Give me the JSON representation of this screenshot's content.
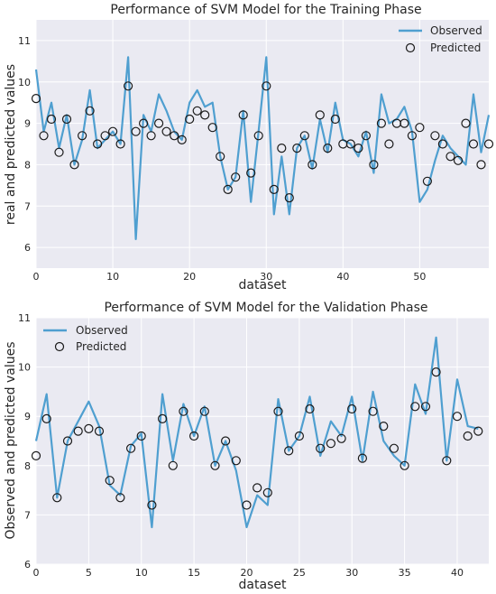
{
  "colors": {
    "background": "#ffffff",
    "plot_bg": "#eaeaf2",
    "grid": "#ffffff",
    "observed_line": "#4f9fd0",
    "predicted_marker_edge": "#1a1a1a",
    "text": "#262626"
  },
  "chart_data": [
    {
      "type": "line",
      "title": "Performance of SVM Model for the Training Phase",
      "xlabel": "dataset",
      "ylabel": "real and predicted values",
      "xlim": [
        0,
        59
      ],
      "ylim": [
        5.5,
        11.5
      ],
      "xticks": [
        0,
        10,
        20,
        30,
        40,
        50
      ],
      "yticks": [
        6,
        7,
        8,
        9,
        10,
        11
      ],
      "grid": true,
      "legend_position": "top-right",
      "series": [
        {
          "name": "Observed",
          "style": "line",
          "x": [
            0,
            1,
            2,
            3,
            4,
            5,
            6,
            7,
            8,
            9,
            10,
            11,
            12,
            13,
            14,
            15,
            16,
            17,
            18,
            19,
            20,
            21,
            22,
            23,
            24,
            25,
            26,
            27,
            28,
            29,
            30,
            31,
            32,
            33,
            34,
            35,
            36,
            37,
            38,
            39,
            40,
            41,
            42,
            43,
            44,
            45,
            46,
            47,
            48,
            49,
            50,
            51,
            52,
            53,
            54,
            55,
            56,
            57,
            58,
            59
          ],
          "values": [
            10.3,
            8.8,
            9.5,
            8.4,
            9.2,
            8.0,
            8.6,
            9.8,
            8.4,
            8.6,
            8.8,
            8.5,
            10.6,
            6.2,
            9.2,
            8.8,
            9.7,
            9.3,
            8.8,
            8.6,
            9.5,
            9.8,
            9.4,
            9.5,
            8.2,
            7.4,
            7.7,
            9.3,
            7.1,
            8.8,
            10.6,
            6.8,
            8.2,
            6.8,
            8.4,
            8.7,
            7.9,
            9.1,
            8.3,
            9.5,
            8.6,
            8.5,
            8.2,
            8.8,
            7.8,
            9.7,
            9.0,
            9.1,
            9.4,
            8.8,
            7.1,
            7.4,
            8.1,
            8.7,
            8.4,
            8.2,
            8.0,
            9.7,
            8.3,
            9.2
          ]
        },
        {
          "name": "Predicted",
          "style": "marker",
          "x": [
            0,
            1,
            2,
            3,
            4,
            5,
            6,
            7,
            8,
            9,
            10,
            11,
            12,
            13,
            14,
            15,
            16,
            17,
            18,
            19,
            20,
            21,
            22,
            23,
            24,
            25,
            26,
            27,
            28,
            29,
            30,
            31,
            32,
            33,
            34,
            35,
            36,
            37,
            38,
            39,
            40,
            41,
            42,
            43,
            44,
            45,
            46,
            47,
            48,
            49,
            50,
            51,
            52,
            53,
            54,
            55,
            56,
            57,
            58,
            59
          ],
          "values": [
            9.6,
            8.7,
            9.1,
            8.3,
            9.1,
            8.0,
            8.7,
            9.3,
            8.5,
            8.7,
            8.8,
            8.5,
            9.9,
            8.8,
            9.0,
            8.7,
            9.0,
            8.8,
            8.7,
            8.6,
            9.1,
            9.3,
            9.2,
            8.9,
            8.2,
            7.4,
            7.7,
            9.2,
            7.8,
            8.7,
            9.9,
            7.4,
            8.4,
            7.2,
            8.4,
            8.7,
            8.0,
            9.2,
            8.4,
            9.1,
            8.5,
            8.5,
            8.4,
            8.7,
            8.0,
            9.0,
            8.5,
            9.0,
            9.0,
            8.7,
            8.9,
            7.6,
            8.7,
            8.5,
            8.2,
            8.1,
            9.0,
            8.5,
            8.0,
            8.5
          ]
        }
      ]
    },
    {
      "type": "line",
      "title": "Performance of SVM Model for the Validation Phase",
      "xlabel": "dataset",
      "ylabel": "Observed and predicted values",
      "xlim": [
        0,
        43
      ],
      "ylim": [
        6,
        11
      ],
      "xticks": [
        0,
        5,
        10,
        15,
        20,
        25,
        30,
        35,
        40
      ],
      "yticks": [
        6,
        7,
        8,
        9,
        10,
        11
      ],
      "grid": true,
      "legend_position": "top-left",
      "series": [
        {
          "name": "Observed",
          "style": "line",
          "x": [
            0,
            1,
            2,
            3,
            4,
            5,
            6,
            7,
            8,
            9,
            10,
            11,
            12,
            13,
            14,
            15,
            16,
            17,
            18,
            19,
            20,
            21,
            22,
            23,
            24,
            25,
            26,
            27,
            28,
            29,
            30,
            31,
            32,
            33,
            34,
            35,
            36,
            37,
            38,
            39,
            40,
            41,
            42
          ],
          "values": [
            8.5,
            9.45,
            7.35,
            8.5,
            8.9,
            9.3,
            8.8,
            7.6,
            7.4,
            8.4,
            8.65,
            6.75,
            9.45,
            8.1,
            9.25,
            8.6,
            9.2,
            8.0,
            8.5,
            7.9,
            6.75,
            7.4,
            7.2,
            9.35,
            8.3,
            8.6,
            9.4,
            8.2,
            8.9,
            8.6,
            9.4,
            8.1,
            9.5,
            8.5,
            8.2,
            8.0,
            9.65,
            9.05,
            10.6,
            8.1,
            9.75,
            8.8,
            8.75
          ]
        },
        {
          "name": "Predicted",
          "style": "marker",
          "x": [
            0,
            1,
            2,
            3,
            4,
            5,
            6,
            7,
            8,
            9,
            10,
            11,
            12,
            13,
            14,
            15,
            16,
            17,
            18,
            19,
            20,
            21,
            22,
            23,
            24,
            25,
            26,
            27,
            28,
            29,
            30,
            31,
            32,
            33,
            34,
            35,
            36,
            37,
            38,
            39,
            40,
            41,
            42
          ],
          "values": [
            8.2,
            8.95,
            7.35,
            8.5,
            8.7,
            8.75,
            8.7,
            7.7,
            7.35,
            8.35,
            8.6,
            7.2,
            8.95,
            8.0,
            9.1,
            8.6,
            9.1,
            8.0,
            8.5,
            8.1,
            7.2,
            7.55,
            7.45,
            9.1,
            8.3,
            8.6,
            9.15,
            8.35,
            8.45,
            8.55,
            9.15,
            8.15,
            9.1,
            8.8,
            8.35,
            8.0,
            9.2,
            9.2,
            9.9,
            8.1,
            9.0,
            8.6,
            8.7
          ]
        }
      ]
    }
  ]
}
